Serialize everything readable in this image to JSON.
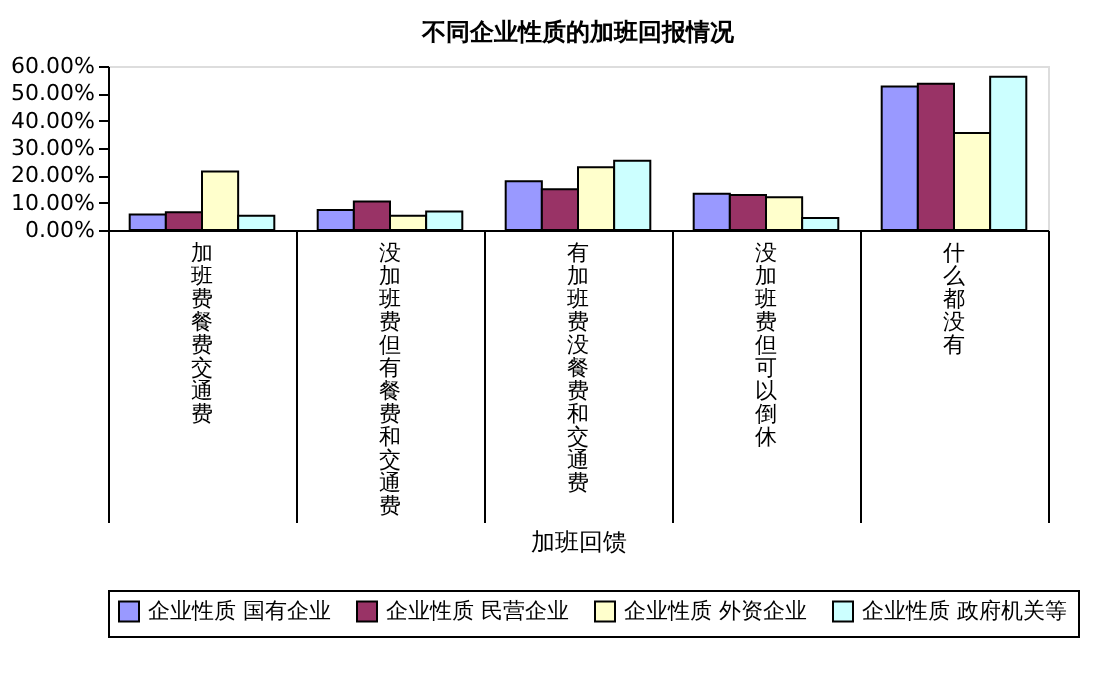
{
  "chart_data": {
    "type": "bar",
    "title": "不同企业性质的加班回报情况",
    "xlabel": "加班回馈",
    "categories": [
      "加班费餐费交通费",
      "没加班费但有餐费和交通费",
      "有加班费没餐费和交通费",
      "没加班费但可以倒休",
      "什么都没有"
    ],
    "series": [
      {
        "name": "企业性质 国有企业",
        "color": "#9999ff",
        "values": [
          5.7,
          7.3,
          17.8,
          13.3,
          52.5
        ]
      },
      {
        "name": "企业性质 民营企业",
        "color": "#993366",
        "values": [
          6.5,
          10.4,
          14.9,
          12.8,
          53.5
        ]
      },
      {
        "name": "企业性质 外资企业",
        "color": "#ffffcc",
        "values": [
          21.4,
          5.2,
          23.0,
          12.0,
          35.5
        ]
      },
      {
        "name": "企业性质 政府机关等",
        "color": "#ccffff",
        "values": [
          5.2,
          6.8,
          25.3,
          4.4,
          56.1
        ]
      }
    ],
    "ylim": [
      0,
      60
    ],
    "yticks": [
      {
        "value": 0,
        "label": "0.00%"
      },
      {
        "value": 10,
        "label": "10.00%"
      },
      {
        "value": 20,
        "label": "20.00%"
      },
      {
        "value": 30,
        "label": "30.00%"
      },
      {
        "value": 40,
        "label": "40.00%"
      },
      {
        "value": 50,
        "label": "50.00%"
      },
      {
        "value": 60,
        "label": "60.00%"
      }
    ],
    "grid": false,
    "legend": "bottom"
  }
}
